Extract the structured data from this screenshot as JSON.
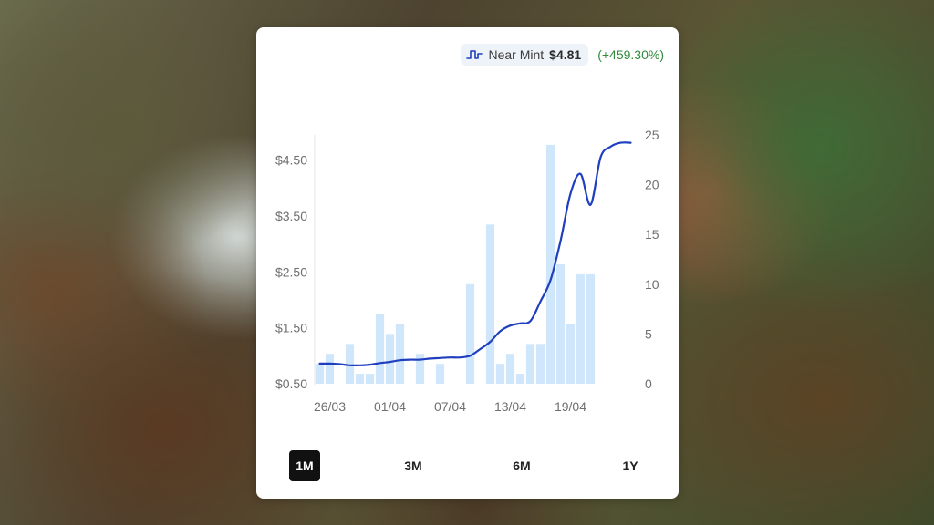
{
  "legend": {
    "name": "Near Mint",
    "price": "$4.81",
    "change": "(+459.30%)",
    "icon": "step-line-icon",
    "line_color": "#1f3fbf",
    "change_color": "#2e8b3a"
  },
  "ranges": [
    {
      "label": "1M",
      "active": true
    },
    {
      "label": "3M",
      "active": false
    },
    {
      "label": "6M",
      "active": false
    },
    {
      "label": "1Y",
      "active": false
    }
  ],
  "chart_data": {
    "type": "line",
    "title": "",
    "xlabel": "",
    "ylabel": "",
    "x_ticks": [
      "26/03",
      "01/04",
      "07/04",
      "13/04",
      "19/04"
    ],
    "y_left_ticks": [
      "$0.50",
      "$1.50",
      "$2.50",
      "$3.50",
      "$4.50"
    ],
    "y_left_lim": [
      0.5,
      4.95
    ],
    "y_right_ticks": [
      "0",
      "5",
      "10",
      "15",
      "20",
      "25"
    ],
    "y_right_lim": [
      0,
      25
    ],
    "grid": false,
    "legend_position": "top-right",
    "x_days": [
      "25/03",
      "26/03",
      "27/03",
      "28/03",
      "29/03",
      "30/03",
      "31/03",
      "01/04",
      "02/04",
      "03/04",
      "04/04",
      "05/04",
      "06/04",
      "07/04",
      "08/04",
      "09/04",
      "10/04",
      "11/04",
      "12/04",
      "13/04",
      "14/04",
      "15/04",
      "16/04",
      "17/04",
      "18/04",
      "19/04",
      "20/04",
      "21/04",
      "22/04",
      "23/04",
      "24/04",
      "25/04"
    ],
    "series": [
      {
        "type": "line",
        "axis": "left",
        "color": "#1f3fbf",
        "values": [
          0.86,
          0.86,
          0.85,
          0.83,
          0.83,
          0.84,
          0.87,
          0.89,
          0.92,
          0.93,
          0.93,
          0.95,
          0.96,
          0.97,
          0.97,
          1.0,
          1.12,
          1.25,
          1.44,
          1.54,
          1.58,
          1.62,
          1.97,
          2.35,
          3.05,
          3.9,
          4.25,
          3.7,
          4.55,
          4.74,
          4.81,
          4.81
        ]
      },
      {
        "type": "bar",
        "axis": "right",
        "color": "#cfe6fb",
        "values": [
          2,
          3,
          0,
          4,
          1,
          1,
          7,
          5,
          6,
          0,
          3,
          0,
          2,
          0,
          0,
          10,
          0,
          16,
          2,
          3,
          1,
          4,
          4,
          24,
          12,
          6,
          11,
          11,
          0,
          0,
          0,
          0
        ]
      }
    ]
  }
}
